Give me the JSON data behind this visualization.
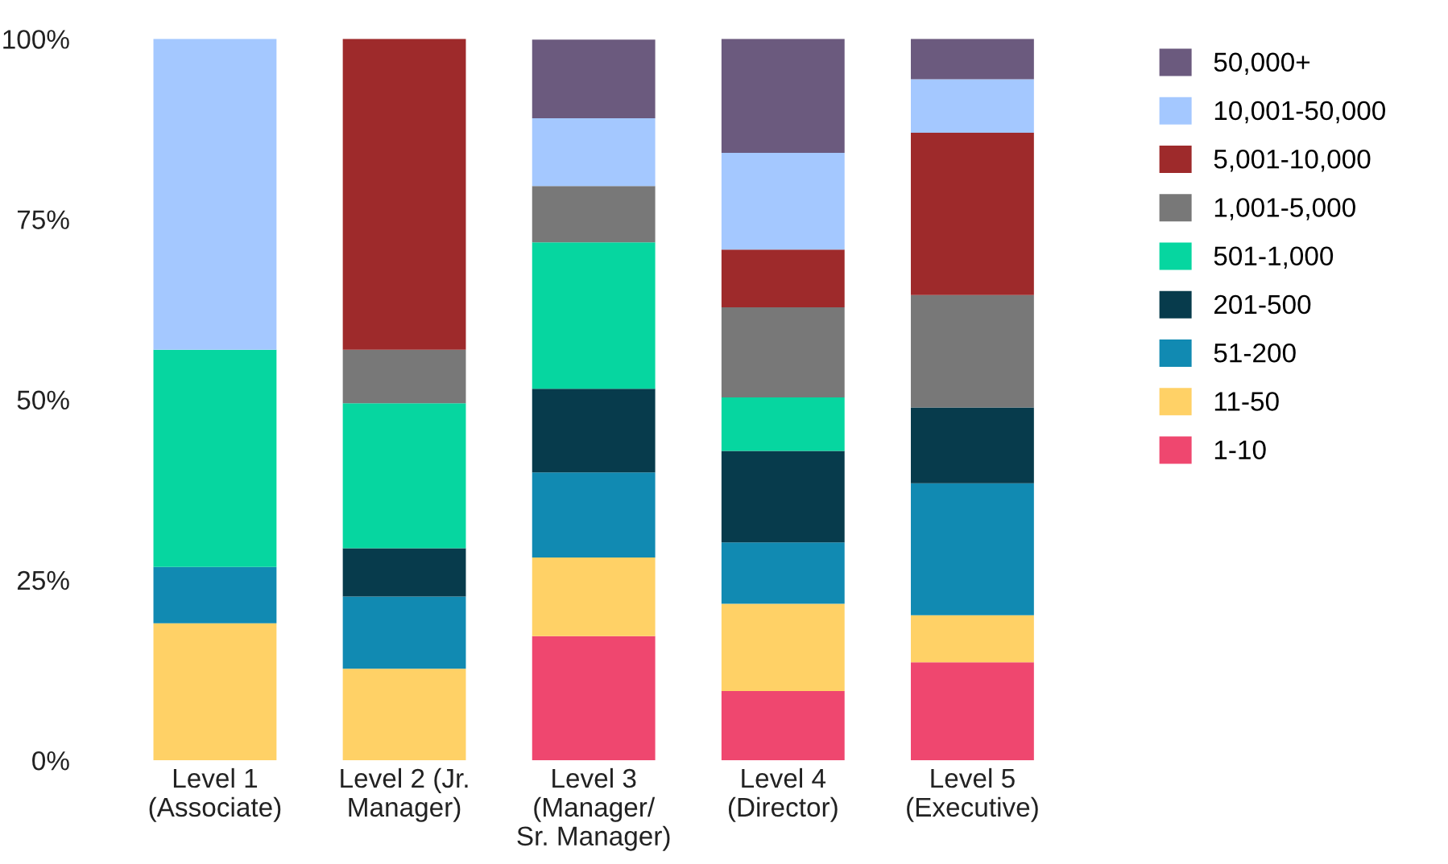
{
  "chart_data": {
    "type": "bar",
    "stacked": true,
    "categories": [
      "Level 1\n(Associate)",
      "Level 2 (Jr.\nManager)",
      "Level 3\n(Manager/\nSr. Manager)",
      "Level 4\n(Director)",
      "Level 5\n(Executive)"
    ],
    "series": [
      {
        "name": "1-10",
        "color": "#ef476f",
        "values": [
          0,
          0,
          17.2,
          9.6,
          13.6
        ]
      },
      {
        "name": "11-50",
        "color": "#ffd166",
        "values": [
          19,
          12.7,
          10.9,
          12.1,
          6.5
        ]
      },
      {
        "name": "51-200",
        "color": "#118ab2",
        "values": [
          7.8,
          10,
          11.8,
          8.5,
          18.3
        ]
      },
      {
        "name": "201-500",
        "color": "#073b4c",
        "values": [
          0,
          6.7,
          11.6,
          12.7,
          10.5
        ]
      },
      {
        "name": "501-1,000",
        "color": "#06d6a0",
        "values": [
          30.1,
          20.1,
          20.3,
          7.4,
          0
        ]
      },
      {
        "name": "1,001-5,000",
        "color": "#787878",
        "values": [
          0,
          7.4,
          7.8,
          12.5,
          15.6
        ]
      },
      {
        "name": "5,001-10,000",
        "color": "#9e2a2b",
        "values": [
          0,
          43.1,
          0,
          8.0,
          22.5
        ]
      },
      {
        "name": "10,001-50,000",
        "color": "#a4c8ff",
        "values": [
          43.1,
          0,
          9.4,
          13.4,
          7.4
        ]
      },
      {
        "name": "50,000+",
        "color": "#6b5a7e",
        "values": [
          0,
          0,
          10.9,
          15.8,
          5.6
        ]
      }
    ],
    "ylim": [
      0,
      100
    ],
    "yticks": [
      {
        "value": 0,
        "label": "0%"
      },
      {
        "value": 25,
        "label": "25%"
      },
      {
        "value": 50,
        "label": "50%"
      },
      {
        "value": 75,
        "label": "75%"
      },
      {
        "value": 100,
        "label": "100%"
      }
    ],
    "legend": "right",
    "grid": false
  }
}
